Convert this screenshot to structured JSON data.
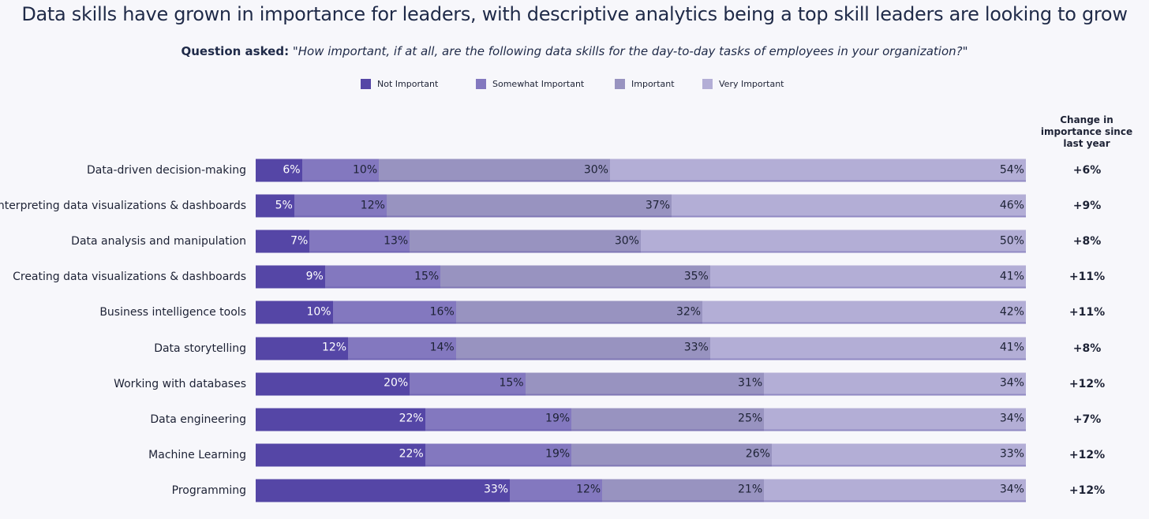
{
  "title": "Data skills have grown in importance for leaders, with descriptive analytics being a top skill leaders are looking to grow",
  "subtitle_prefix": "Question asked:",
  "subtitle_question": "\"How important, if at all, are the following data skills for the day-to-day tasks of employees in your organization?\"",
  "change_header": "Change in importance since last year",
  "chart_data": {
    "type": "bar",
    "orientation": "horizontal",
    "stacked": true,
    "xlim": [
      0,
      100
    ],
    "legend_position": "top-center",
    "categories": [
      "Data-driven decision-making",
      "Interpreting data visualizations & dashboards",
      "Data analysis and manipulation",
      "Creating data visualizations & dashboards",
      "Business intelligence tools",
      "Data storytelling",
      "Working with databases",
      "Data engineering",
      "Machine Learning",
      "Programming"
    ],
    "series": [
      {
        "name": "Not Important",
        "color": "#5546a6",
        "label_color": "#ffffff",
        "values": [
          6,
          5,
          7,
          9,
          10,
          12,
          20,
          22,
          22,
          33
        ]
      },
      {
        "name": "Somewhat Important",
        "color": "#8378bf",
        "label_color": "#1d2235",
        "values": [
          10,
          12,
          13,
          15,
          16,
          14,
          15,
          19,
          19,
          12
        ]
      },
      {
        "name": "Important",
        "color": "#9893c0",
        "label_color": "#1d2235",
        "values": [
          30,
          37,
          30,
          35,
          32,
          33,
          31,
          25,
          26,
          21
        ]
      },
      {
        "name": "Very Important",
        "color": "#b3aed6",
        "label_color": "#1d2235",
        "values": [
          54,
          46,
          50,
          41,
          42,
          41,
          34,
          34,
          33,
          34
        ]
      }
    ],
    "change": [
      "+6%",
      "+9%",
      "+8%",
      "+11%",
      "+11%",
      "+8%",
      "+12%",
      "+7%",
      "+12%",
      "+12%"
    ]
  }
}
